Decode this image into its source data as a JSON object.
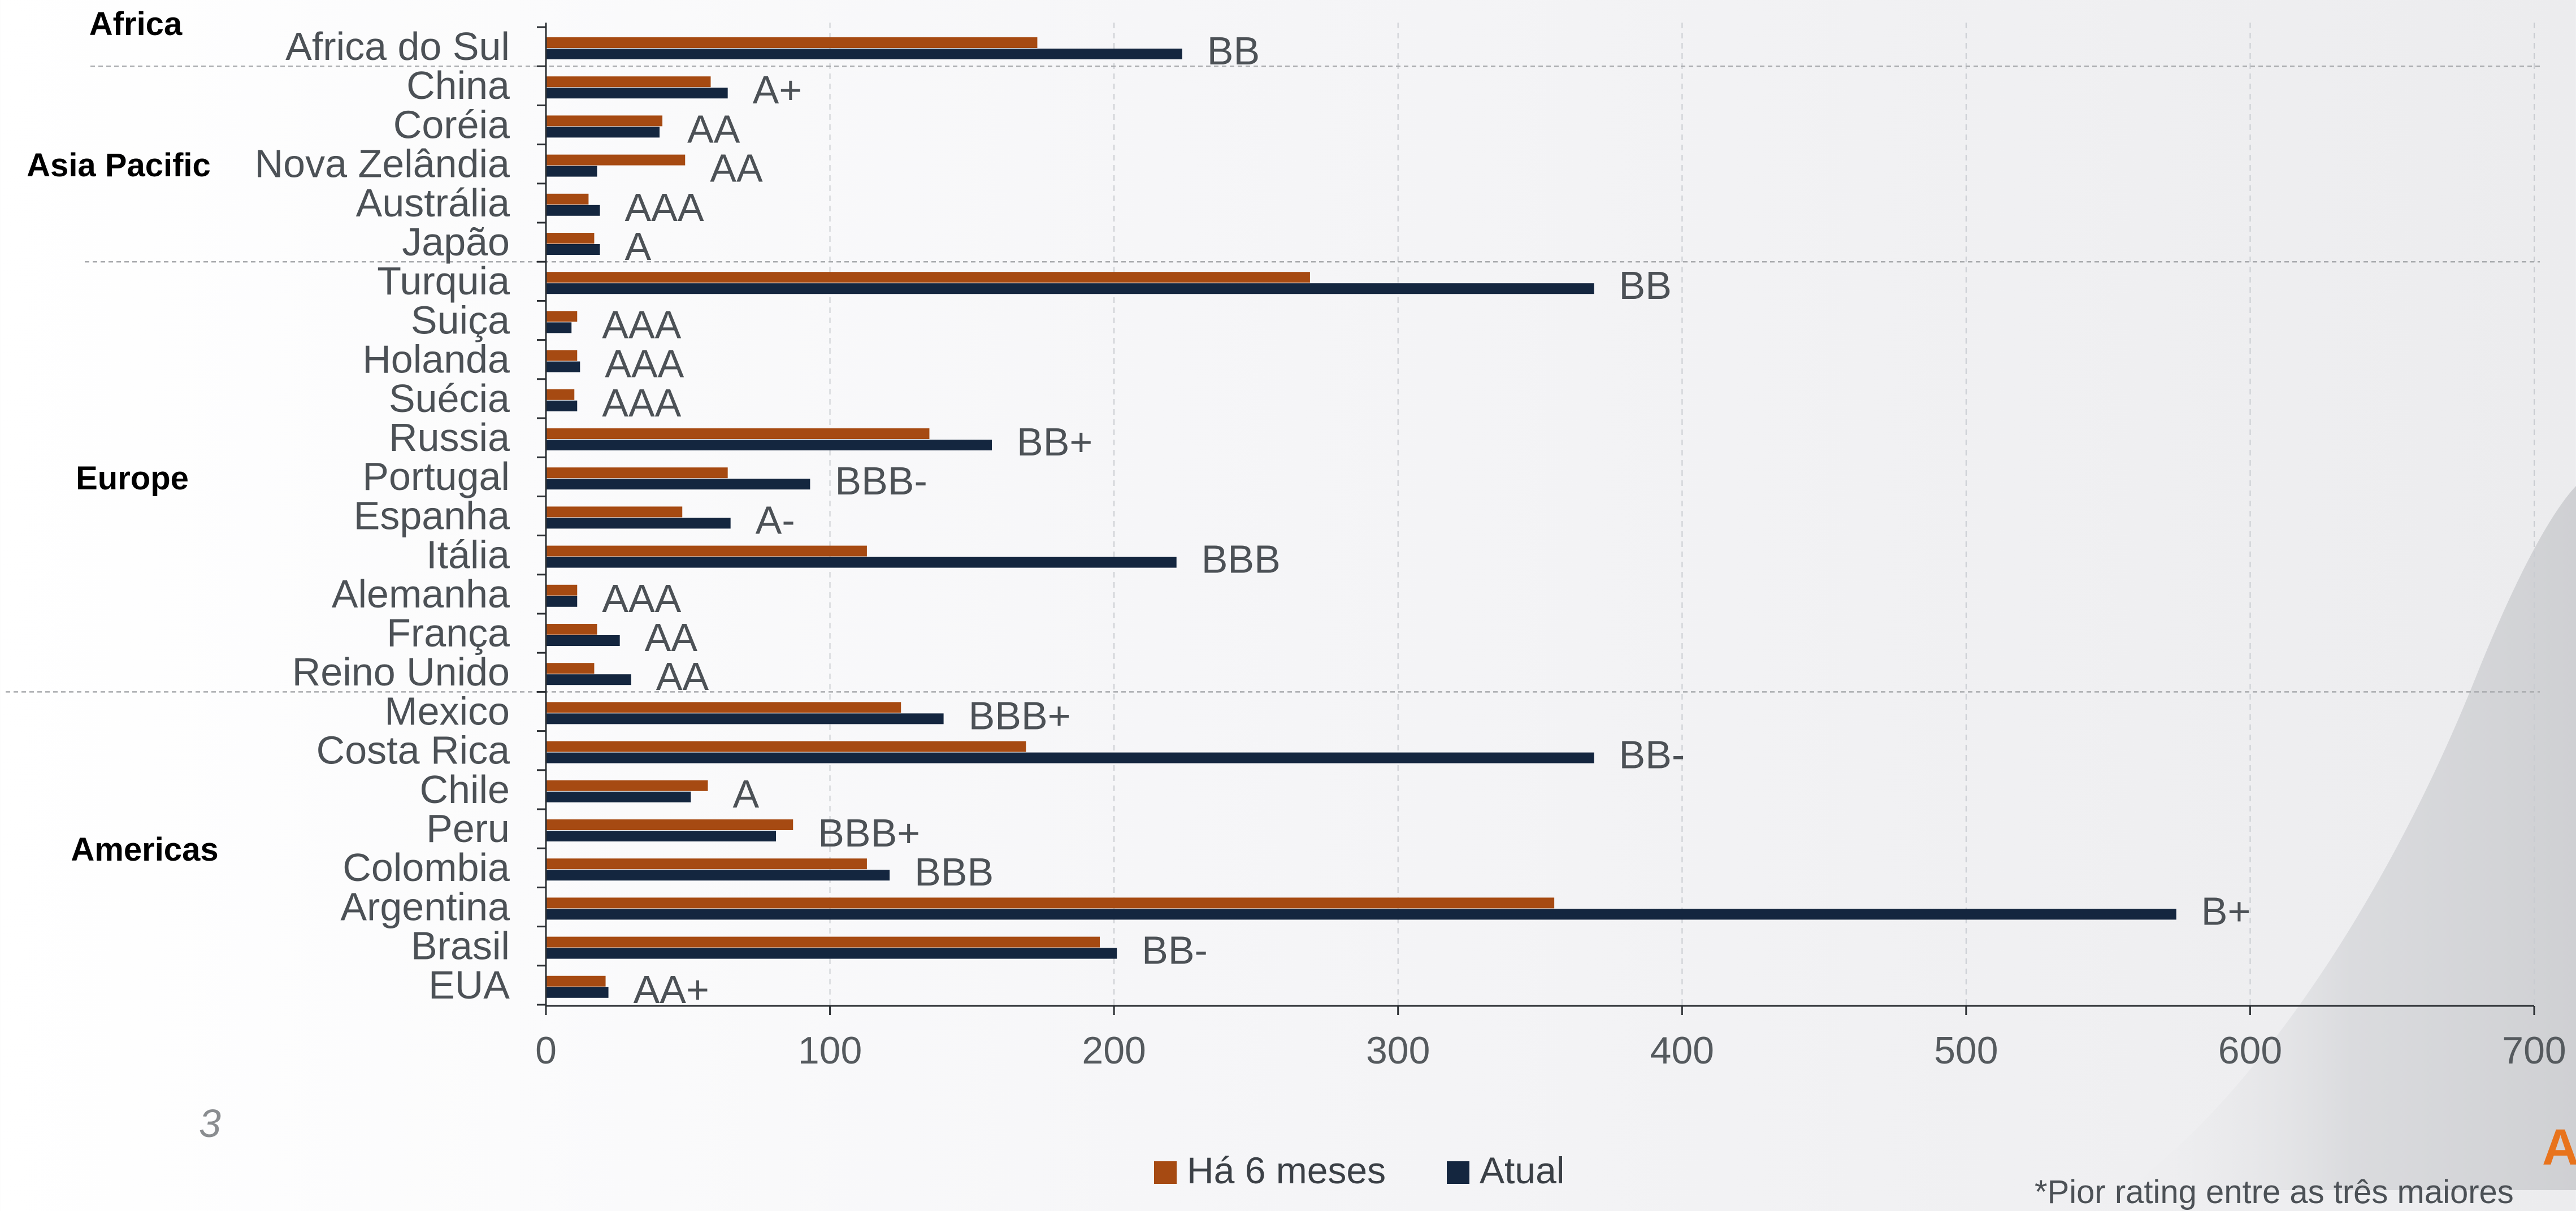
{
  "slide": {
    "page_number": "3",
    "footnote": "*Pior rating entre as três maiores",
    "logo_letter": "A"
  },
  "colors": {
    "six_months": "#a64a12",
    "current": "#14263f",
    "grid": "#c9ccd1",
    "separator": "#a9abae"
  },
  "chart_data": {
    "type": "bar",
    "orientation": "horizontal",
    "title": "",
    "xlabel": "",
    "ylabel": "",
    "xlim": [
      0,
      700
    ],
    "xticks": [
      0,
      100,
      200,
      300,
      400,
      500,
      600,
      700
    ],
    "grid": true,
    "legend_position": "bottom",
    "series": [
      {
        "name": "Há 6 meses",
        "color": "#a64a12"
      },
      {
        "name": "Atual",
        "color": "#14263f"
      }
    ],
    "rows": [
      {
        "country": "Africa do Sul",
        "region": "Africa",
        "six_months": 173,
        "current": 224,
        "rating": "BB"
      },
      {
        "country": "China",
        "region": "Asia Pacific",
        "six_months": 58,
        "current": 64,
        "rating": "A+"
      },
      {
        "country": "Coréia",
        "region": "Asia Pacific",
        "six_months": 41,
        "current": 40,
        "rating": "AA"
      },
      {
        "country": "Nova Zelândia",
        "region": "Asia Pacific",
        "six_months": 49,
        "current": 18,
        "rating": "AA"
      },
      {
        "country": "Austrália",
        "region": "Asia Pacific",
        "six_months": 15,
        "current": 19,
        "rating": "AAA"
      },
      {
        "country": "Japão",
        "region": "Asia Pacific",
        "six_months": 17,
        "current": 19,
        "rating": "A"
      },
      {
        "country": "Turquia",
        "region": "Europe",
        "six_months": 269,
        "current": 369,
        "rating": "BB"
      },
      {
        "country": "Suiça",
        "region": "Europe",
        "six_months": 11,
        "current": 9,
        "rating": "AAA"
      },
      {
        "country": "Holanda",
        "region": "Europe",
        "six_months": 11,
        "current": 12,
        "rating": "AAA"
      },
      {
        "country": "Suécia",
        "region": "Europe",
        "six_months": 10,
        "current": 11,
        "rating": "AAA"
      },
      {
        "country": "Russia",
        "region": "Europe",
        "six_months": 135,
        "current": 157,
        "rating": "BB+"
      },
      {
        "country": "Portugal",
        "region": "Europe",
        "six_months": 64,
        "current": 93,
        "rating": "BBB-"
      },
      {
        "country": "Espanha",
        "region": "Europe",
        "six_months": 48,
        "current": 65,
        "rating": "A-"
      },
      {
        "country": "Itália",
        "region": "Europe",
        "six_months": 113,
        "current": 222,
        "rating": "BBB"
      },
      {
        "country": "Alemanha",
        "region": "Europe",
        "six_months": 11,
        "current": 11,
        "rating": "AAA"
      },
      {
        "country": "França",
        "region": "Europe",
        "six_months": 18,
        "current": 26,
        "rating": "AA"
      },
      {
        "country": "Reino Unido",
        "region": "Europe",
        "six_months": 17,
        "current": 30,
        "rating": "AA"
      },
      {
        "country": "Mexico",
        "region": "Americas",
        "six_months": 125,
        "current": 140,
        "rating": "BBB+"
      },
      {
        "country": "Costa Rica",
        "region": "Americas",
        "six_months": 169,
        "current": 369,
        "rating": "BB-"
      },
      {
        "country": "Chile",
        "region": "Americas",
        "six_months": 57,
        "current": 51,
        "rating": "A"
      },
      {
        "country": "Peru",
        "region": "Americas",
        "six_months": 87,
        "current": 81,
        "rating": "BBB+"
      },
      {
        "country": "Colombia",
        "region": "Americas",
        "six_months": 113,
        "current": 121,
        "rating": "BBB"
      },
      {
        "country": "Argentina",
        "region": "Americas",
        "six_months": 355,
        "current": 574,
        "rating": "B+"
      },
      {
        "country": "Brasil",
        "region": "Americas",
        "six_months": 195,
        "current": 201,
        "rating": "BB-"
      },
      {
        "country": "EUA",
        "region": "Americas",
        "six_months": 21,
        "current": 22,
        "rating": "AA+"
      }
    ],
    "regions": [
      "Africa",
      "Asia Pacific",
      "Europe",
      "Americas"
    ]
  }
}
